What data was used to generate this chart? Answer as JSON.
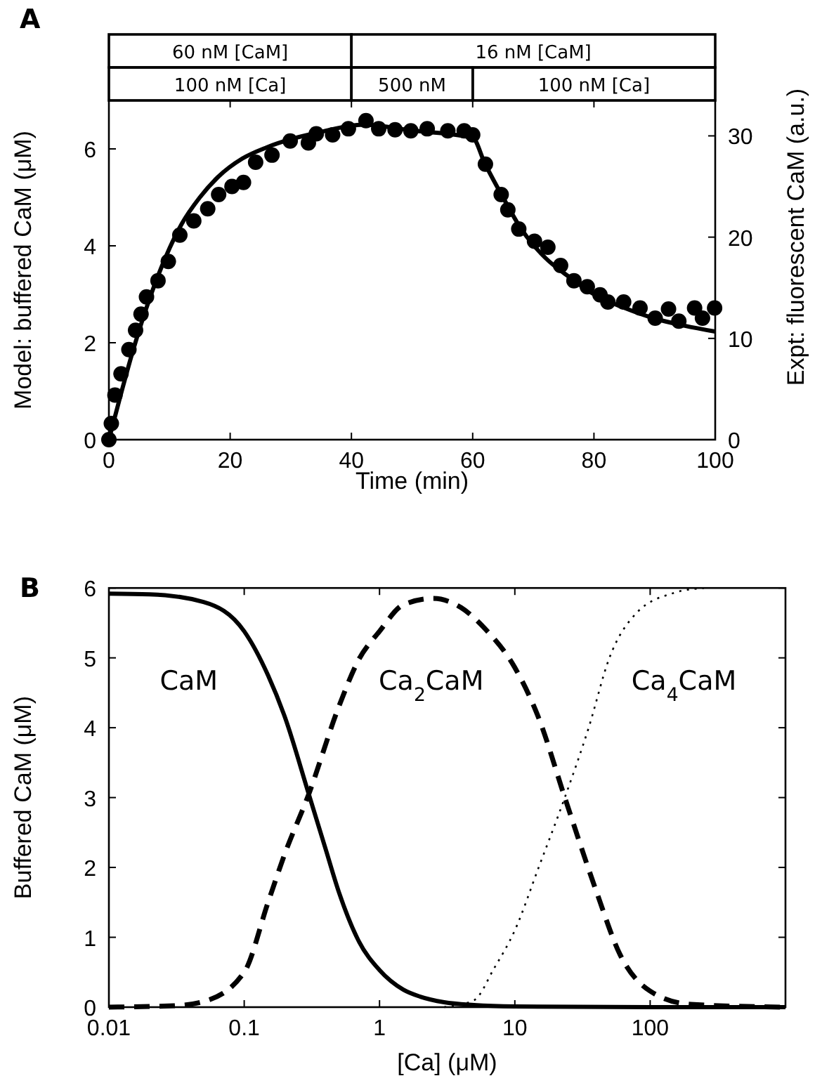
{
  "chart_data": [
    {
      "type": "line",
      "title": "A",
      "xlabel": "Time (min)",
      "ylabel": "Model: buffered CaM (μM)",
      "y2label": "Expt: fluorescent CaM (a.u.)",
      "xlim": [
        0,
        100
      ],
      "xticks": [
        0,
        20,
        40,
        60,
        80,
        100
      ],
      "ylim": [
        0,
        7
      ],
      "yticks": [
        0,
        2,
        4,
        6
      ],
      "y2lim": [
        0,
        33.5
      ],
      "y2ticks": [
        0,
        10,
        20,
        30
      ],
      "annotations": [
        "60 nM [CaM]",
        "16 nM [CaM]",
        "100 nM [Ca]",
        "500 nM",
        "100 nM [Ca]"
      ],
      "series": [
        {
          "color": "#000000",
          "line_style": "solid",
          "x": [
            0,
            2,
            4,
            6,
            8,
            10,
            12,
            15,
            18,
            22,
            26,
            30,
            35,
            40,
            42,
            50,
            60,
            62,
            65,
            68,
            72,
            76,
            80,
            85,
            90,
            95,
            100
          ],
          "values": [
            0,
            0.95,
            1.85,
            2.65,
            3.35,
            3.95,
            4.45,
            5.0,
            5.42,
            5.8,
            6.03,
            6.2,
            6.35,
            6.48,
            6.5,
            6.38,
            6.23,
            5.7,
            5.0,
            4.35,
            3.75,
            3.35,
            3.0,
            2.72,
            2.5,
            2.35,
            2.23
          ]
        },
        {
          "type": "scatter",
          "axis": "y2",
          "color": "#000000",
          "marker": "circle",
          "x": [
            0,
            0.4,
            1.0,
            2.0,
            3.3,
            4.4,
            5.3,
            6.2,
            8.1,
            9.8,
            11.7,
            14.0,
            16.3,
            18.1,
            20.3,
            22.2,
            24.2,
            26.9,
            29.9,
            32.9,
            34.2,
            36.9,
            39.5,
            42.4,
            44.5,
            47.2,
            49.8,
            52.5,
            55.9,
            58.6,
            60.0,
            62.1,
            64.7,
            65.8,
            67.6,
            70.2,
            72.4,
            74.5,
            76.7,
            78.9,
            81.0,
            82.3,
            84.9,
            87.6,
            90.1,
            92.3,
            94.0,
            96.6,
            97.9,
            99.9
          ],
          "values": [
            0,
            1.6,
            4.4,
            6.5,
            8.9,
            10.8,
            12.4,
            14.1,
            15.7,
            17.6,
            20.2,
            21.6,
            22.8,
            24.2,
            25.0,
            25.4,
            27.4,
            28.1,
            29.5,
            29.3,
            30.2,
            30.1,
            30.7,
            31.5,
            30.7,
            30.6,
            30.5,
            30.7,
            30.5,
            30.5,
            30.1,
            27.2,
            24.2,
            22.7,
            20.8,
            19.6,
            19.0,
            17.2,
            15.7,
            15.1,
            14.3,
            13.6,
            13.6,
            13.0,
            12.0,
            12.9,
            11.7,
            13.0,
            12.0,
            13.0
          ]
        }
      ]
    },
    {
      "type": "line",
      "title": "B",
      "xlabel": "[Ca] (μM)",
      "ylabel": "Buffered CaM (μM)",
      "log": "x",
      "xlim": [
        0.01,
        1000
      ],
      "xticks": [
        0.01,
        0.1,
        1,
        10,
        100
      ],
      "ylim": [
        0,
        6
      ],
      "yticks": [
        0,
        1,
        2,
        3,
        4,
        5,
        6
      ],
      "series": [
        {
          "name": "CaM",
          "color": "#000000",
          "line_style": "solid",
          "x": [
            0.01,
            0.02,
            0.05,
            0.1,
            0.15,
            0.2,
            0.3,
            0.4,
            0.5,
            0.7,
            1,
            1.5,
            2,
            3,
            5,
            10,
            100,
            1000
          ],
          "values": [
            5.92,
            5.91,
            5.8,
            5.38,
            4.75,
            4.15,
            3.05,
            2.26,
            1.65,
            0.95,
            0.53,
            0.25,
            0.15,
            0.07,
            0.03,
            0.01,
            0,
            0
          ]
        },
        {
          "name": "Ca$_{2}$CaM",
          "color": "#000000",
          "line_style": "dashed",
          "x": [
            0.01,
            0.03,
            0.05,
            0.1,
            0.15,
            0.2,
            0.3,
            0.5,
            0.7,
            1,
            1.5,
            2.5,
            4,
            6,
            10,
            15,
            23.4,
            40,
            60,
            100,
            200,
            1000
          ],
          "values": [
            0,
            0.02,
            0.08,
            0.5,
            1.5,
            2.2,
            3.05,
            4.3,
            4.97,
            5.38,
            5.76,
            5.85,
            5.72,
            5.42,
            4.86,
            4.14,
            3.0,
            1.66,
            0.75,
            0.23,
            0.04,
            0
          ]
        },
        {
          "name": "Ca$_{4}$CaM",
          "color": "#000000",
          "line_style": "dotted",
          "x": [
            3,
            5,
            7,
            10,
            15,
            23.4,
            35,
            50,
            80,
            150,
            250
          ],
          "values": [
            0,
            0.1,
            0.55,
            1.1,
            2.0,
            3.0,
            3.99,
            5.0,
            5.65,
            5.93,
            6
          ]
        }
      ]
    }
  ]
}
